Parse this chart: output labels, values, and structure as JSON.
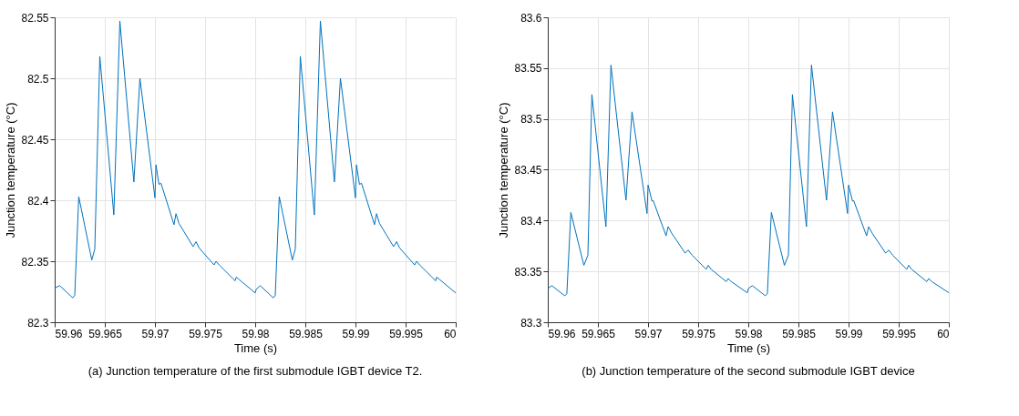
{
  "chart_data": [
    {
      "type": "line",
      "xlabel": "Time (s)",
      "ylabel": "Junction temperature (°C)",
      "annotations": [
        "(a) Junction temperature of the first submodule IGBT device T2."
      ],
      "grid": true,
      "line_style": "solid",
      "xlim": [
        59.96,
        60
      ],
      "xticks": [
        59.96,
        59.965,
        59.97,
        59.975,
        59.98,
        59.985,
        59.99,
        59.995,
        60
      ],
      "ylim": [
        82.3,
        82.55
      ],
      "yticks": [
        82.3,
        82.35,
        82.4,
        82.45,
        82.5,
        82.55
      ],
      "x": [
        59.96,
        59.9605,
        59.9618,
        59.962,
        59.9624,
        59.9637,
        59.964,
        59.9645,
        59.9659,
        59.9665,
        59.9679,
        59.9685,
        59.97,
        59.9701,
        59.9704,
        59.9706,
        59.9719,
        59.9721,
        59.9724,
        59.9738,
        59.9741,
        59.9744,
        59.9759,
        59.9761,
        59.9764,
        59.978,
        59.9781,
        59.9784,
        59.98,
        59.9801,
        59.9805,
        59.9818,
        59.982,
        59.9824,
        59.9837,
        59.984,
        59.9845,
        59.9859,
        59.9865,
        59.9879,
        59.9885,
        59.99,
        59.9901,
        59.9904,
        59.9906,
        59.9919,
        59.9921,
        59.9924,
        59.9938,
        59.9941,
        59.9944,
        59.9959,
        59.9961,
        59.9964,
        59.998,
        59.9981,
        59.9984,
        60
      ],
      "series": [
        {
          "color": "#0072bd",
          "values": [
            82.328,
            82.33,
            82.32,
            82.322,
            82.403,
            82.351,
            82.36,
            82.518,
            82.388,
            82.547,
            82.415,
            82.5,
            82.402,
            82.429,
            82.413,
            82.414,
            82.38,
            82.389,
            82.381,
            82.362,
            82.366,
            82.361,
            82.347,
            82.35,
            82.347,
            82.334,
            82.337,
            82.335,
            82.324,
            82.327,
            82.33,
            82.32,
            82.322,
            82.403,
            82.351,
            82.36,
            82.518,
            82.388,
            82.547,
            82.415,
            82.5,
            82.402,
            82.429,
            82.413,
            82.414,
            82.38,
            82.389,
            82.381,
            82.362,
            82.366,
            82.361,
            82.347,
            82.35,
            82.347,
            82.334,
            82.337,
            82.335,
            82.324
          ]
        }
      ]
    },
    {
      "type": "line",
      "xlabel": "Time (s)",
      "ylabel": "Junction temperature (°C)",
      "annotations": [
        "(b) Junction temperature of the second submodule IGBT device"
      ],
      "grid": true,
      "line_style": "solid",
      "xlim": [
        59.96,
        60
      ],
      "xticks": [
        59.96,
        59.965,
        59.97,
        59.975,
        59.98,
        59.985,
        59.99,
        59.995,
        60
      ],
      "ylim": [
        83.3,
        83.6
      ],
      "yticks": [
        83.3,
        83.35,
        83.4,
        83.45,
        83.5,
        83.55,
        83.6
      ],
      "x": [
        59.96,
        59.9604,
        59.9617,
        59.9619,
        59.9623,
        59.9636,
        59.964,
        59.9644,
        59.9658,
        59.9663,
        59.9678,
        59.9684,
        59.9699,
        59.97,
        59.9704,
        59.9705,
        59.9718,
        59.972,
        59.9724,
        59.9737,
        59.974,
        59.9744,
        59.9758,
        59.976,
        59.9763,
        59.9778,
        59.978,
        59.9783,
        59.9799,
        59.98,
        59.9804,
        59.9817,
        59.9819,
        59.9823,
        59.9836,
        59.984,
        59.9844,
        59.9858,
        59.9863,
        59.9878,
        59.9884,
        59.9899,
        59.99,
        59.9904,
        59.9905,
        59.9918,
        59.992,
        59.9924,
        59.9937,
        59.994,
        59.9944,
        59.9958,
        59.996,
        59.9963,
        59.9978,
        59.998,
        59.9983,
        60
      ],
      "series": [
        {
          "color": "#0072bd",
          "values": [
            83.333,
            83.336,
            83.326,
            83.328,
            83.408,
            83.356,
            83.366,
            83.524,
            83.394,
            83.553,
            83.42,
            83.507,
            83.407,
            83.435,
            83.419,
            83.42,
            83.385,
            83.394,
            83.387,
            83.368,
            83.371,
            83.366,
            83.352,
            83.356,
            83.352,
            83.34,
            83.343,
            83.34,
            83.329,
            83.333,
            83.336,
            83.326,
            83.328,
            83.408,
            83.356,
            83.366,
            83.524,
            83.394,
            83.553,
            83.42,
            83.507,
            83.407,
            83.435,
            83.419,
            83.42,
            83.385,
            83.394,
            83.387,
            83.368,
            83.371,
            83.366,
            83.352,
            83.356,
            83.352,
            83.34,
            83.343,
            83.34,
            83.329
          ]
        }
      ]
    }
  ]
}
